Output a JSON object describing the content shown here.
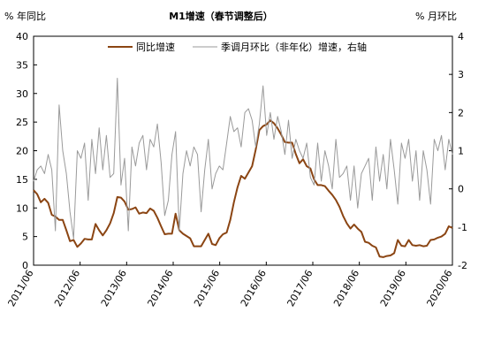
{
  "chart_data": {
    "type": "line",
    "title": "M1增速（春节调整后）",
    "ylabel_left": "% 年同比",
    "ylabel_right": "% 月环比",
    "ylim_left": [
      0,
      40
    ],
    "ylim_right": [
      -2,
      4
    ],
    "yticks_left": [
      "0",
      "5",
      "10",
      "15",
      "20",
      "25",
      "30",
      "35",
      "40"
    ],
    "yticks_right": [
      "-2",
      "-1",
      "0",
      "1",
      "2",
      "3",
      "4"
    ],
    "xtick_labels": [
      "2011/06",
      "2012/06",
      "2013/06",
      "2014/06",
      "2015/06",
      "2016/06",
      "2017/06",
      "2018/06",
      "2019/06",
      "2020/06"
    ],
    "x_start": "2011/06",
    "x_end": "2020/06",
    "legend_position": "top",
    "grid": false,
    "colors": {
      "series1": "#8B4513",
      "series2": "#9a9a9a"
    },
    "series": [
      {
        "name": "同比增速",
        "axis": "left",
        "values": [
          13.1,
          12.4,
          11.0,
          11.6,
          10.9,
          8.8,
          8.5,
          7.9,
          7.9,
          6.1,
          4.2,
          4.4,
          3.2,
          3.8,
          4.6,
          4.5,
          4.5,
          7.2,
          6.1,
          5.2,
          6.1,
          7.3,
          9.1,
          11.9,
          11.8,
          11.1,
          9.7,
          9.8,
          10.1,
          9.0,
          9.2,
          9.1,
          9.9,
          9.5,
          8.3,
          6.8,
          5.4,
          5.5,
          5.5,
          9.0,
          6.1,
          5.5,
          5.1,
          4.7,
          3.3,
          3.3,
          3.3,
          4.4,
          5.5,
          3.7,
          3.5,
          4.7,
          5.4,
          5.7,
          7.9,
          11.0,
          13.6,
          15.6,
          15.1,
          16.2,
          17.3,
          20.2,
          23.6,
          24.3,
          24.6,
          25.3,
          24.8,
          23.9,
          22.8,
          21.5,
          21.4,
          21.4,
          19.4,
          17.8,
          18.5,
          17.3,
          16.9,
          15.0,
          14.0,
          14.0,
          13.8,
          13.0,
          12.3,
          11.4,
          10.2,
          8.6,
          7.3,
          6.4,
          7.1,
          6.4,
          5.8,
          4.1,
          3.9,
          3.4,
          3.1,
          1.5,
          1.4,
          1.6,
          1.7,
          2.1,
          4.4,
          3.4,
          3.3,
          4.4,
          3.5,
          3.4,
          3.5,
          3.3,
          3.4,
          4.4,
          4.5,
          4.8,
          5.0,
          5.5,
          6.8,
          6.5
        ]
      },
      {
        "name": "季调月环比（非年化）增速，右轴",
        "axis": "right",
        "values": [
          0.2,
          0.5,
          0.6,
          0.4,
          0.9,
          0.5,
          -1.1,
          2.2,
          1.0,
          0.4,
          -0.6,
          -1.3,
          1.0,
          0.8,
          1.2,
          -0.3,
          1.3,
          0.4,
          1.6,
          0.5,
          1.4,
          0.3,
          0.4,
          2.9,
          0.1,
          0.8,
          -1.1,
          1.1,
          0.6,
          1.2,
          1.4,
          0.5,
          1.3,
          1.1,
          1.7,
          0.7,
          -0.7,
          -0.3,
          0.9,
          1.5,
          -1.1,
          0.4,
          1.0,
          0.6,
          1.1,
          0.9,
          -0.6,
          0.5,
          1.3,
          0.0,
          0.4,
          0.6,
          0.5,
          1.2,
          1.9,
          1.5,
          1.6,
          1.1,
          2.0,
          2.1,
          1.8,
          1.1,
          1.7,
          2.7,
          1.4,
          2.0,
          1.3,
          1.9,
          1.5,
          0.9,
          1.8,
          0.8,
          1.3,
          1.0,
          0.8,
          1.2,
          0.3,
          0.1,
          1.2,
          0.2,
          1.0,
          0.6,
          0.0,
          1.3,
          0.3,
          0.4,
          0.6,
          -0.3,
          0.6,
          -0.5,
          0.4,
          0.6,
          0.8,
          -0.3,
          1.1,
          0.2,
          0.9,
          0.0,
          1.3,
          0.5,
          -0.4,
          1.2,
          0.8,
          1.3,
          0.2,
          1.0,
          -0.3,
          1.0,
          0.5,
          -0.4,
          1.3,
          1.0,
          1.4,
          0.5,
          1.3,
          0.9
        ]
      }
    ]
  }
}
